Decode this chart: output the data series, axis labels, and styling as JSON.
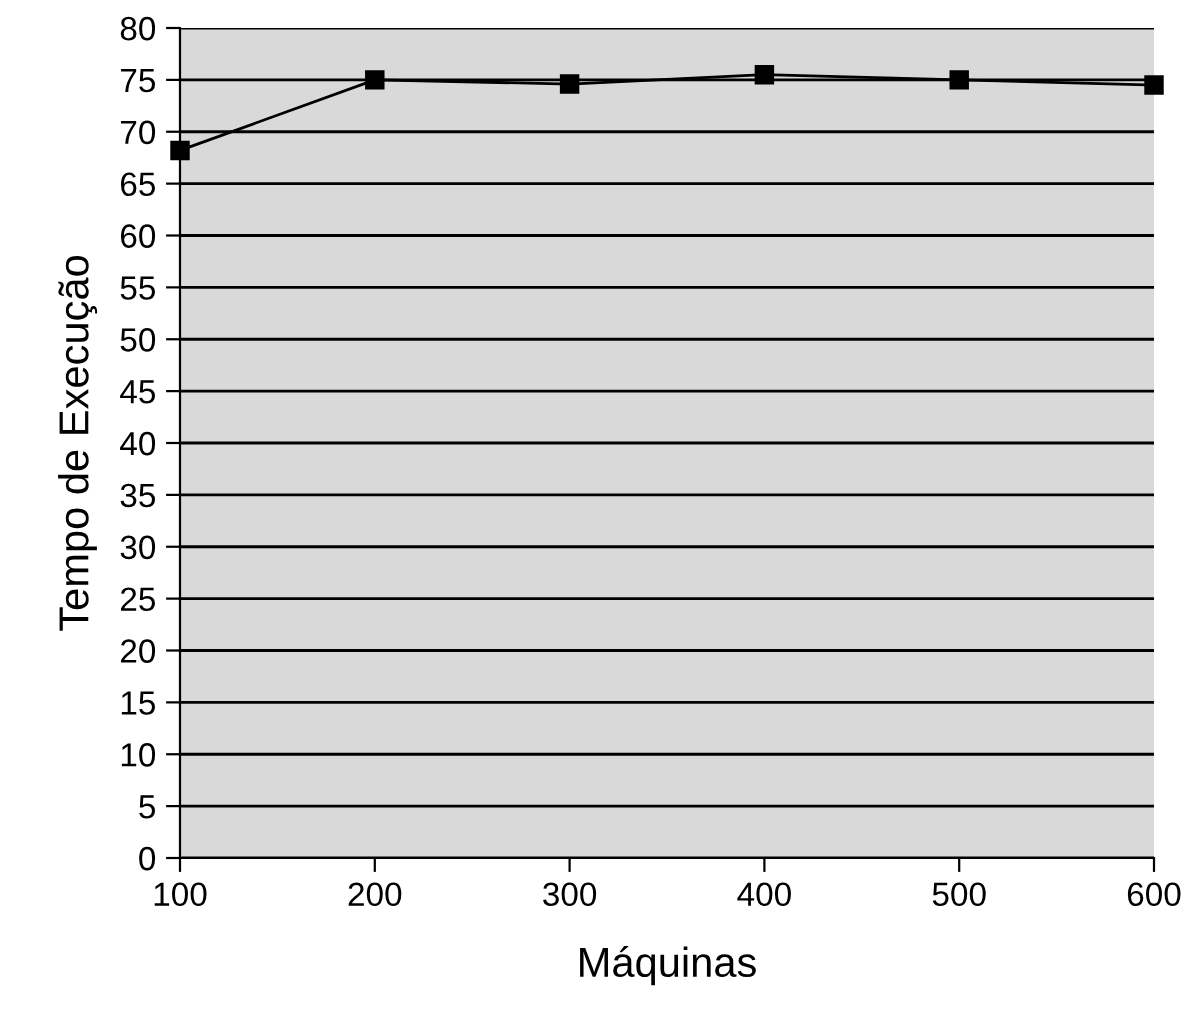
{
  "chart_data": {
    "type": "line",
    "xlabel": "Máquinas",
    "ylabel": "Tempo de Execução",
    "x": [
      100,
      200,
      300,
      400,
      500,
      600
    ],
    "series": [
      {
        "color": "#000000",
        "values": [
          68.2,
          75.0,
          74.6,
          75.5,
          75.0,
          74.5
        ]
      }
    ],
    "xlim": [
      100,
      600
    ],
    "xticks": [
      100,
      200,
      300,
      400,
      500,
      600
    ],
    "ylim": [
      0,
      80
    ],
    "yticks": [
      0,
      5,
      10,
      15,
      20,
      25,
      30,
      35,
      40,
      45,
      50,
      55,
      60,
      65,
      70,
      75,
      80
    ],
    "grid": "y",
    "marker": "square",
    "line_style": "solid",
    "legend": false
  }
}
